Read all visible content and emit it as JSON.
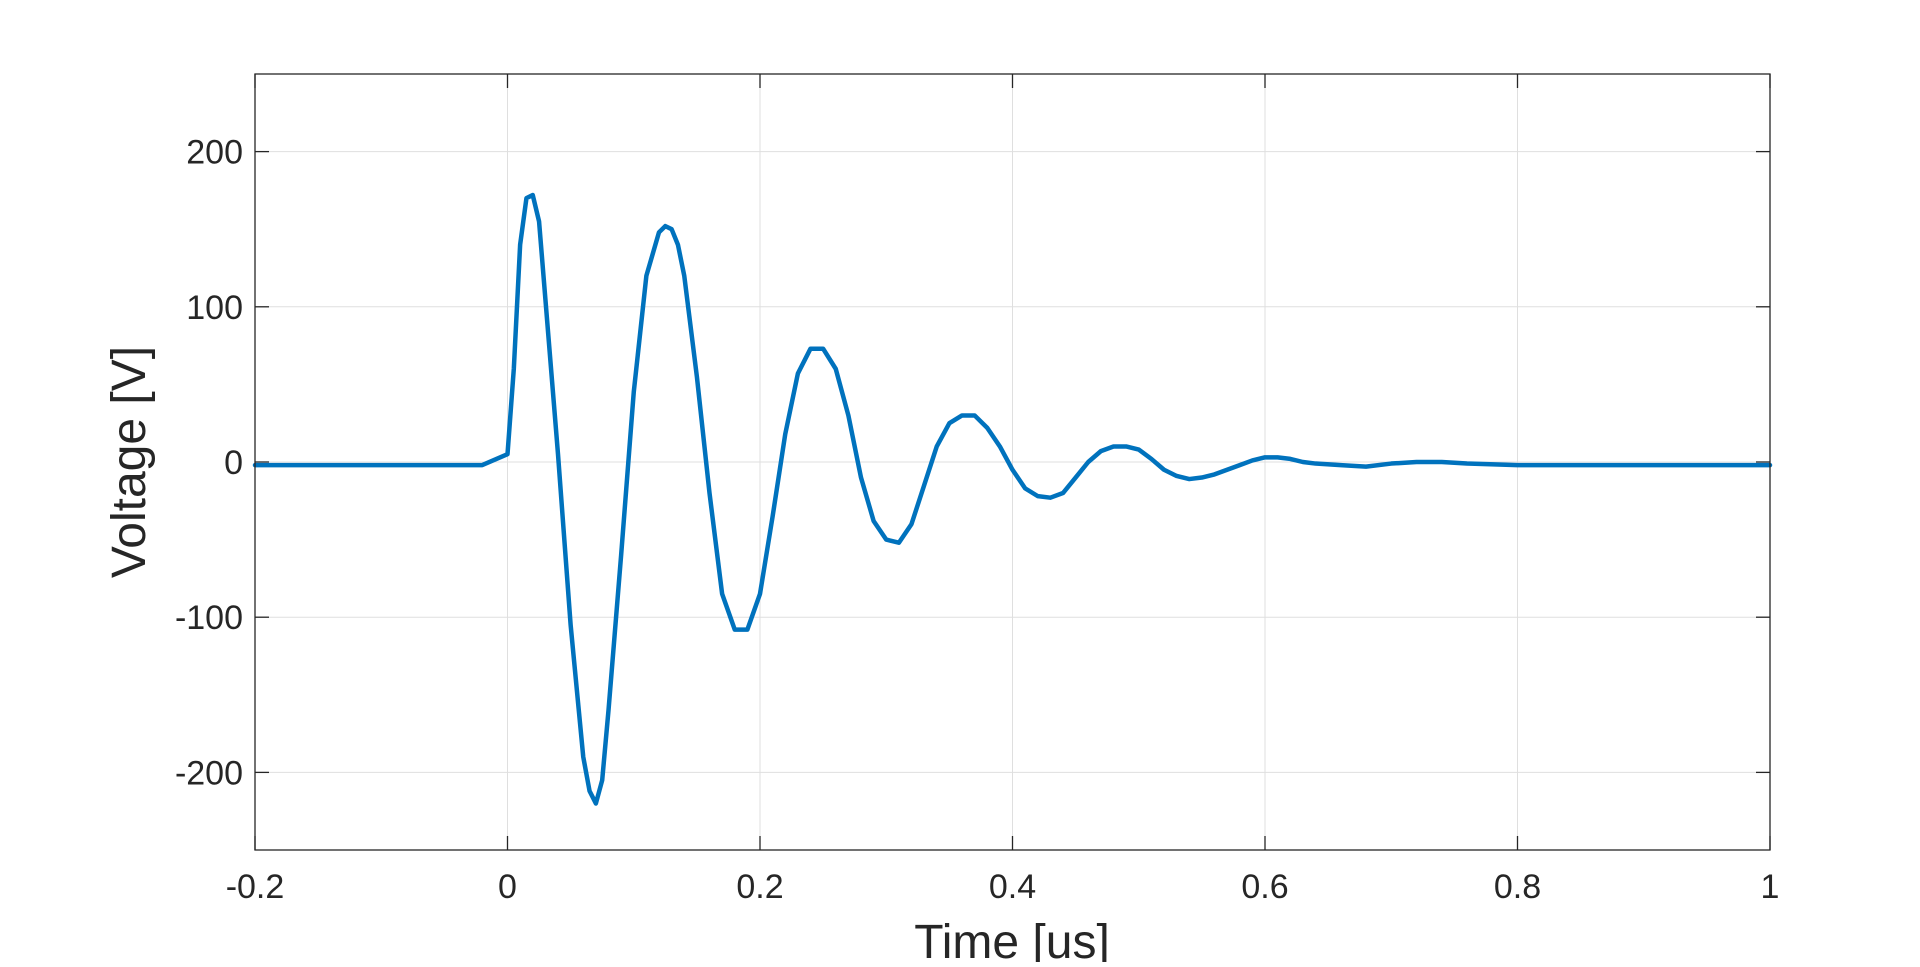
{
  "chart_data": {
    "type": "line",
    "title": "",
    "xlabel": "Time [us]",
    "ylabel": "Voltage [V]",
    "xlim": [
      -0.2,
      1.0
    ],
    "ylim": [
      -250,
      250
    ],
    "xticks": [
      -0.2,
      0,
      0.2,
      0.4,
      0.6,
      0.8,
      1.0
    ],
    "xtick_labels": [
      "-0.2",
      "0",
      "0.2",
      "0.4",
      "0.6",
      "0.8",
      "1"
    ],
    "yticks": [
      -200,
      -100,
      0,
      100,
      200
    ],
    "ytick_labels": [
      "-200",
      "-100",
      "0",
      "100",
      "200"
    ],
    "grid": true,
    "legend": "none",
    "line_color": "#0072BD",
    "series": [
      {
        "x": [
          -0.2,
          -0.1,
          -0.02,
          0.0,
          0.005,
          0.01,
          0.015,
          0.02,
          0.025,
          0.03,
          0.04,
          0.05,
          0.06,
          0.065,
          0.07,
          0.075,
          0.08,
          0.09,
          0.1,
          0.11,
          0.12,
          0.125,
          0.13,
          0.135,
          0.14,
          0.15,
          0.16,
          0.17,
          0.18,
          0.19,
          0.2,
          0.21,
          0.22,
          0.23,
          0.24,
          0.25,
          0.26,
          0.27,
          0.28,
          0.29,
          0.3,
          0.31,
          0.32,
          0.33,
          0.34,
          0.35,
          0.36,
          0.37,
          0.38,
          0.39,
          0.4,
          0.41,
          0.42,
          0.43,
          0.44,
          0.45,
          0.46,
          0.47,
          0.48,
          0.49,
          0.5,
          0.51,
          0.52,
          0.53,
          0.54,
          0.55,
          0.56,
          0.57,
          0.58,
          0.59,
          0.6,
          0.61,
          0.62,
          0.63,
          0.64,
          0.66,
          0.68,
          0.7,
          0.72,
          0.74,
          0.76,
          0.8,
          0.85,
          0.9,
          0.95,
          1.0
        ],
        "y": [
          -2,
          -2,
          -2,
          5,
          60,
          140,
          170,
          172,
          155,
          105,
          5,
          -105,
          -190,
          -212,
          -220,
          -205,
          -160,
          -60,
          45,
          120,
          148,
          152,
          150,
          140,
          120,
          55,
          -20,
          -85,
          -108,
          -108,
          -85,
          -35,
          18,
          57,
          73,
          73,
          60,
          30,
          -10,
          -38,
          -50,
          -52,
          -40,
          -15,
          10,
          25,
          30,
          30,
          22,
          10,
          -5,
          -17,
          -22,
          -23,
          -20,
          -10,
          0,
          7,
          10,
          10,
          8,
          2,
          -5,
          -9,
          -11,
          -10,
          -8,
          -5,
          -2,
          1,
          3,
          3,
          2,
          0,
          -1,
          -2,
          -3,
          -1,
          0,
          0,
          -1,
          -2,
          -2,
          -2,
          -2,
          -2
        ]
      }
    ]
  }
}
